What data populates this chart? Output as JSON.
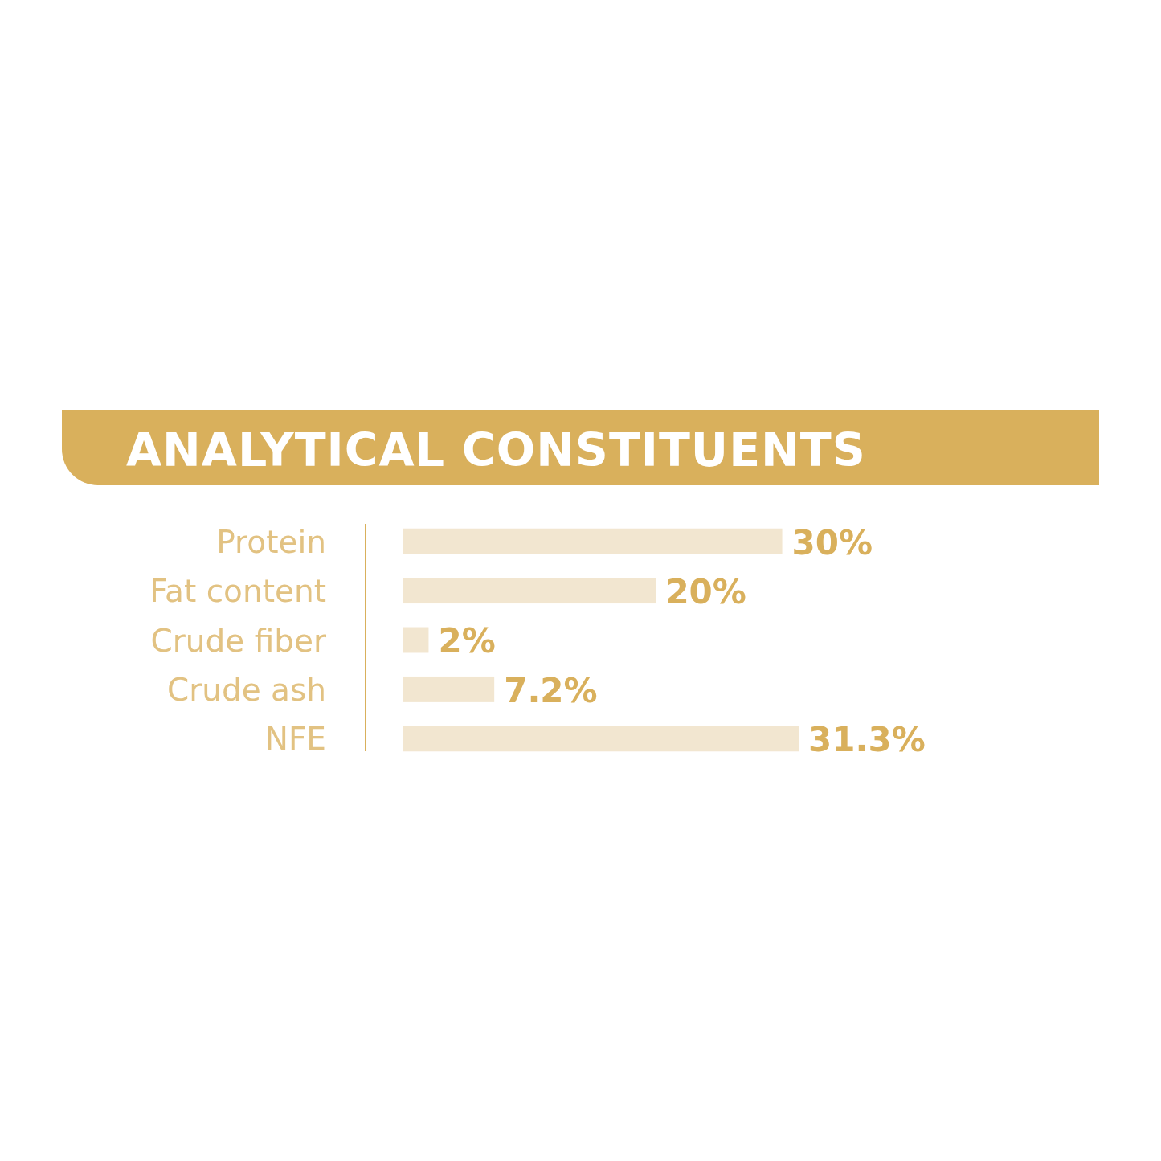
{
  "chart_data": {
    "type": "bar",
    "orientation": "horizontal",
    "title": "ANALYTICAL CONSTITUENTS",
    "categories": [
      "Protein",
      "Fat content",
      "Crude fiber",
      "Crude ash",
      "NFE"
    ],
    "values": [
      30,
      20,
      2,
      7.2,
      31.3
    ],
    "value_labels": [
      "30%",
      "20%",
      "2%",
      "7.2%",
      "31.3%"
    ],
    "color": "#f2e6d0"
  }
}
